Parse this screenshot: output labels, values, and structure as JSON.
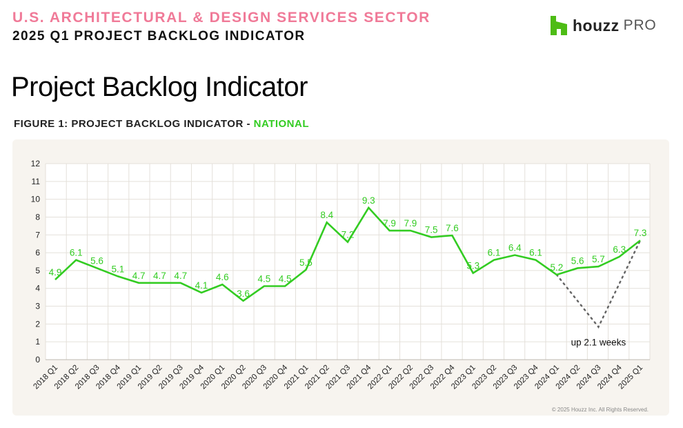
{
  "header": {
    "sector": "U.S. ARCHITECTURAL & DESIGN SERVICES SECTOR",
    "report": "2025 Q1 PROJECT BACKLOG INDICATOR"
  },
  "logo": {
    "icon": "houzz-house-icon",
    "word": "houzz",
    "suffix": "PRO",
    "color": "#4dbc15"
  },
  "page_title": "Project Backlog Indicator",
  "figure": {
    "prefix": "FIGURE 1: PROJECT BACKLOG INDICATOR - ",
    "highlight": "NATIONAL"
  },
  "copyright": "© 2025 Houzz Inc. All Rights Reserved.",
  "chart_data": {
    "type": "line",
    "title": "",
    "xlabel": "",
    "ylabel": "",
    "grid": true,
    "legend": "none",
    "line_color": "#33cc22",
    "y_ticks": [
      "0",
      "1",
      "2",
      "3",
      "4",
      "5",
      "6",
      "7",
      "8",
      "10",
      "11",
      "12"
    ],
    "ylim": [
      0,
      12
    ],
    "categories": [
      "2018 Q1",
      "2018 Q2",
      "2018 Q3",
      "2018 Q4",
      "2019 Q1",
      "2019 Q2",
      "2019 Q3",
      "2019 Q4",
      "2020 Q1",
      "2020 Q2",
      "2020 Q3",
      "2020 Q4",
      "2021 Q1",
      "2021 Q2",
      "2021 Q3",
      "2021 Q4",
      "2022 Q1",
      "2022 Q2",
      "2022 Q3",
      "2022 Q4",
      "2023 Q1",
      "2023 Q2",
      "2023 Q3",
      "2023 Q4",
      "2024 Q1",
      "2024 Q2",
      "2024 Q3",
      "2024 Q4",
      "2025 Q1"
    ],
    "labels": [
      "4.9",
      "6.1",
      "5.6",
      "5.1",
      "4.7",
      "4.7",
      "4.7",
      "4.1",
      "4.6",
      "3.6",
      "4.5",
      "4.5",
      "5.5",
      "8.4",
      "7.2",
      "9.3",
      "7.9",
      "7.9",
      "7.5",
      "7.6",
      "5.3",
      "6.1",
      "6.4",
      "6.1",
      "5.2",
      "5.6",
      "5.7",
      "6.3",
      "7.3"
    ],
    "values": [
      4.9,
      6.1,
      5.6,
      5.1,
      4.7,
      4.7,
      4.7,
      4.1,
      4.6,
      3.6,
      4.5,
      4.5,
      5.5,
      8.4,
      7.2,
      9.3,
      7.9,
      7.9,
      7.5,
      7.6,
      5.3,
      6.1,
      6.4,
      6.1,
      5.2,
      5.6,
      5.7,
      6.3,
      7.3
    ],
    "annotation": {
      "text": "up 2.1 weeks",
      "from": "2024 Q1",
      "to": "2025 Q1",
      "style": "dotted"
    }
  }
}
